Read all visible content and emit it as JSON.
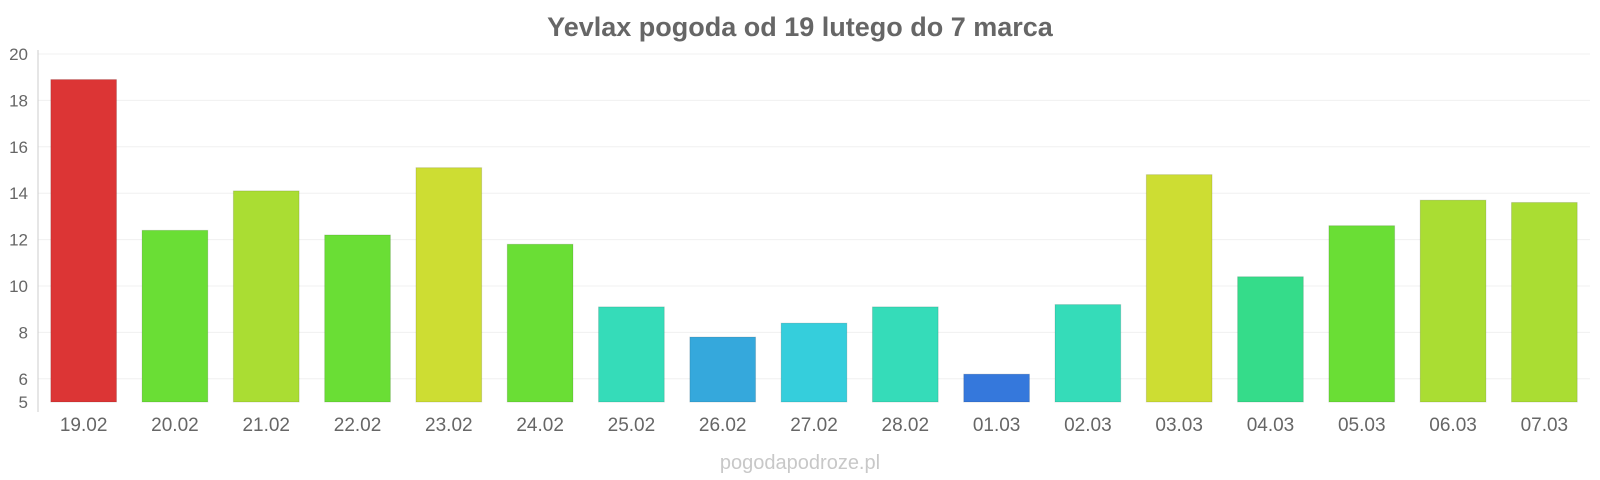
{
  "chart_data": {
    "type": "bar",
    "title": "Yevlax pogoda od 19 lutego do 7 marca",
    "xlabel": "",
    "ylabel": "",
    "ylim": [
      5,
      20
    ],
    "yticks": [
      5,
      6,
      8,
      10,
      12,
      14,
      16,
      18,
      20
    ],
    "grid": true,
    "legend": "none",
    "categories": [
      "19.02",
      "20.02",
      "21.02",
      "22.02",
      "23.02",
      "24.02",
      "25.02",
      "26.02",
      "27.02",
      "28.02",
      "01.03",
      "02.03",
      "03.03",
      "04.03",
      "05.03",
      "06.03",
      "07.03"
    ],
    "values": [
      18.9,
      12.4,
      14.1,
      12.2,
      15.1,
      11.8,
      9.1,
      7.8,
      8.4,
      9.1,
      6.2,
      9.2,
      14.8,
      10.4,
      12.6,
      13.7,
      13.6
    ],
    "colors": [
      "#dc3535",
      "#6ade35",
      "#aadd33",
      "#6ade35",
      "#cddd33",
      "#6ade35",
      "#35dcb9",
      "#35a8dc",
      "#35cedc",
      "#35dcb9",
      "#3578dc",
      "#35dcb9",
      "#cddd33",
      "#35dc8a",
      "#6ade35",
      "#aadd33",
      "#aadd33"
    ]
  },
  "watermark": "pogodapodroze.pl"
}
